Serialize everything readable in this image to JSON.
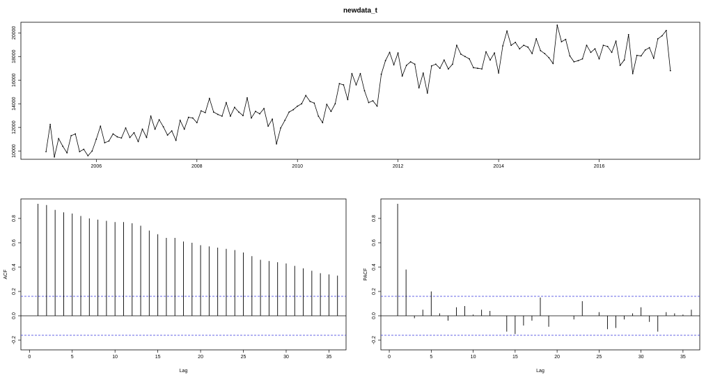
{
  "chart_data": [
    {
      "type": "line",
      "title": "newdata_t",
      "xlabel": "",
      "ylabel": "",
      "x_start": 2005.0,
      "x_step": 0.08333,
      "xlim": [
        2004.5,
        2018.0
      ],
      "ylim": [
        9300,
        20900
      ],
      "xticks": [
        "2006",
        "2008",
        "2010",
        "2012",
        "2014",
        "2016"
      ],
      "yticks": [
        "10000",
        "12000",
        "14000",
        "16000",
        "18000",
        "20000"
      ],
      "values": [
        9950,
        12250,
        9500,
        11050,
        10400,
        9850,
        11300,
        11450,
        9950,
        10150,
        9600,
        10000,
        11000,
        12100,
        10700,
        10850,
        11450,
        11200,
        11100,
        11950,
        11150,
        11550,
        10800,
        11850,
        11150,
        12950,
        11850,
        12650,
        12050,
        11350,
        11700,
        10900,
        12600,
        11850,
        12850,
        12800,
        12400,
        13400,
        13250,
        14450,
        13300,
        13100,
        12950,
        14100,
        12950,
        13700,
        13300,
        13000,
        14500,
        12800,
        13350,
        13150,
        13600,
        12100,
        12700,
        10600,
        11950,
        12600,
        13300,
        13500,
        13800,
        14000,
        14700,
        14200,
        14050,
        12950,
        12400,
        13950,
        13350,
        14000,
        15700,
        15600,
        14350,
        16550,
        15600,
        16550,
        15100,
        14100,
        14250,
        13800,
        16500,
        17650,
        18350,
        17300,
        18300,
        16350,
        17250,
        17550,
        17350,
        15350,
        16600,
        14900,
        17200,
        17350,
        17000,
        17700,
        16950,
        17350,
        18950,
        18200,
        18000,
        17800,
        17050,
        17000,
        16950,
        18400,
        17700,
        18300,
        16600,
        18900,
        20150,
        18950,
        19200,
        18650,
        18950,
        18800,
        18250,
        19500,
        18500,
        18250,
        17900,
        17400,
        20650,
        19250,
        19450,
        18050,
        17550,
        17650,
        17800,
        18950,
        18350,
        18650,
        17800,
        18950,
        18850,
        18350,
        19300,
        17250,
        17700,
        19850,
        16550,
        18100,
        18050,
        18550,
        18750,
        17850,
        19500,
        19750,
        20200,
        16800
      ]
    },
    {
      "type": "bar",
      "title": "",
      "xlabel": "Lag",
      "ylabel": "ACF",
      "xlim": [
        -1,
        37
      ],
      "ylim": [
        -0.28,
        0.96
      ],
      "xticks": [
        "0",
        "5",
        "10",
        "15",
        "20",
        "25",
        "30",
        "35"
      ],
      "yticks": [
        "-0.2",
        "0.0",
        "0.2",
        "0.4",
        "0.6",
        "0.8"
      ],
      "ci": 0.16,
      "lags": [
        1,
        2,
        3,
        4,
        5,
        6,
        7,
        8,
        9,
        10,
        11,
        12,
        13,
        14,
        15,
        16,
        17,
        18,
        19,
        20,
        21,
        22,
        23,
        24,
        25,
        26,
        27,
        28,
        29,
        30,
        31,
        32,
        33,
        34,
        35,
        36
      ],
      "values": [
        0.92,
        0.91,
        0.87,
        0.85,
        0.84,
        0.82,
        0.8,
        0.79,
        0.78,
        0.77,
        0.77,
        0.76,
        0.74,
        0.7,
        0.67,
        0.64,
        0.64,
        0.61,
        0.6,
        0.58,
        0.57,
        0.56,
        0.55,
        0.54,
        0.52,
        0.49,
        0.46,
        0.45,
        0.44,
        0.43,
        0.41,
        0.39,
        0.37,
        0.35,
        0.34,
        0.33
      ]
    },
    {
      "type": "bar",
      "title": "",
      "xlabel": "Lag",
      "ylabel": "PACF",
      "xlim": [
        -1,
        37
      ],
      "ylim": [
        -0.28,
        0.96
      ],
      "xticks": [
        "0",
        "5",
        "10",
        "15",
        "20",
        "25",
        "30",
        "35"
      ],
      "yticks": [
        "-0.2",
        "0.0",
        "0.2",
        "0.4",
        "0.6",
        "0.8"
      ],
      "ci": 0.16,
      "lags": [
        1,
        2,
        3,
        4,
        5,
        6,
        7,
        8,
        9,
        10,
        11,
        12,
        13,
        14,
        15,
        16,
        17,
        18,
        19,
        20,
        21,
        22,
        23,
        24,
        25,
        26,
        27,
        28,
        29,
        30,
        31,
        32,
        33,
        34,
        35,
        36
      ],
      "values": [
        0.92,
        0.38,
        -0.02,
        0.05,
        0.2,
        0.02,
        -0.04,
        0.07,
        0.08,
        0.01,
        0.05,
        0.04,
        0.0,
        -0.13,
        -0.15,
        -0.08,
        -0.04,
        0.15,
        -0.09,
        0.0,
        0.0,
        -0.03,
        0.12,
        0.0,
        0.03,
        -0.11,
        -0.1,
        -0.03,
        0.02,
        0.07,
        -0.05,
        -0.13,
        0.03,
        0.02,
        0.01,
        0.05
      ]
    }
  ]
}
